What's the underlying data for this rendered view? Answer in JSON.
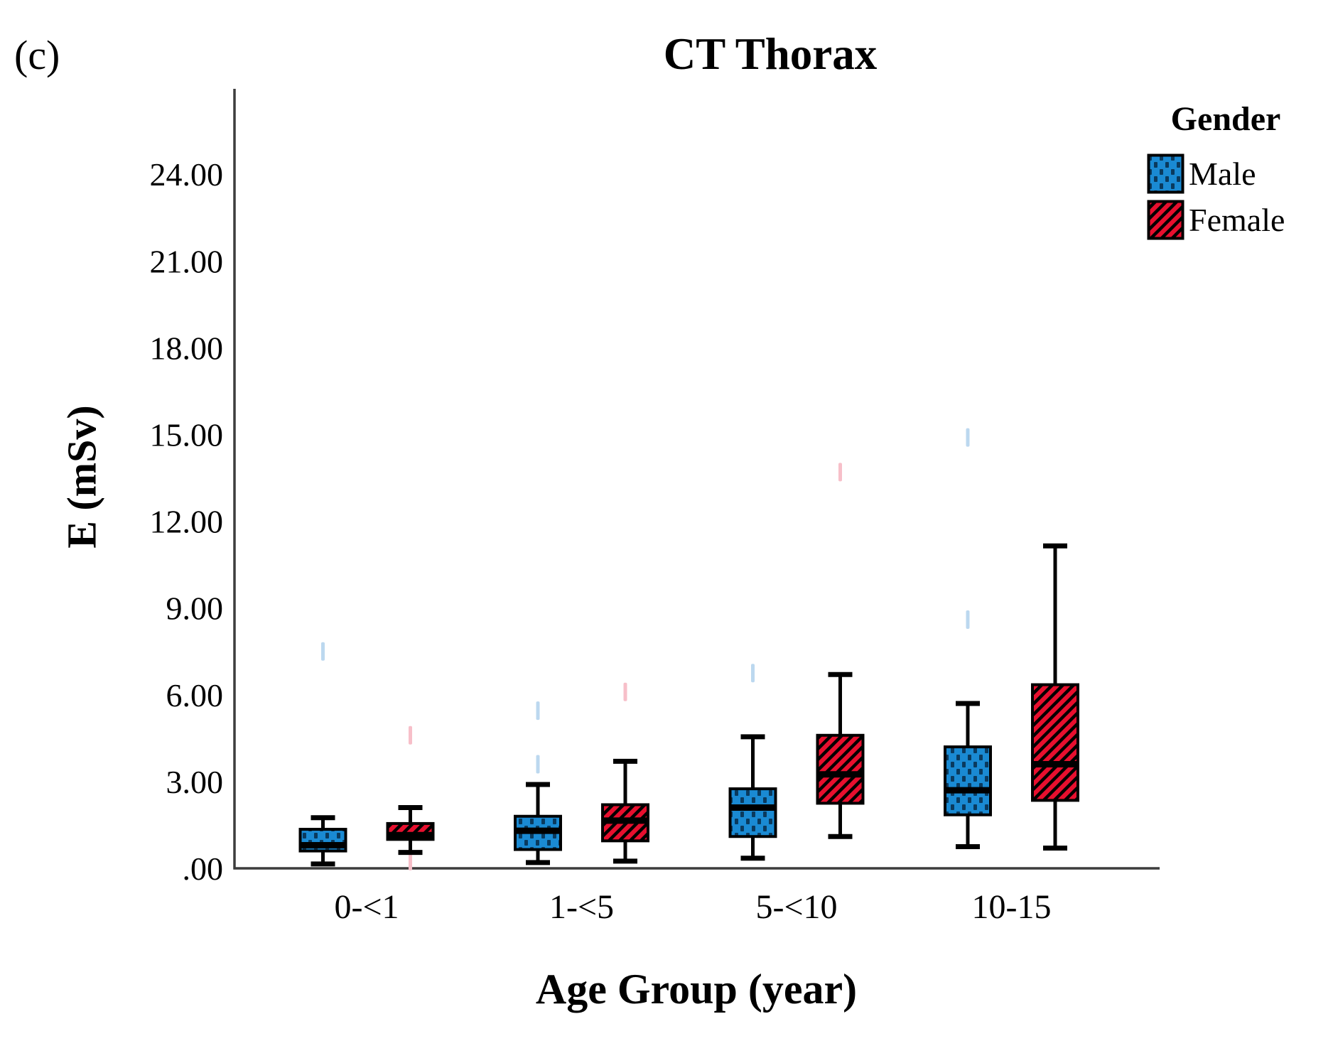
{
  "panel_label": "(c)",
  "title": "CT Thorax",
  "legend": {
    "title": "Gender",
    "entries": [
      {
        "label": "Male",
        "color": "#1a8ad3",
        "pattern": "vertical-dashes"
      },
      {
        "label": "Female",
        "color": "#e70f2e",
        "pattern": "diagonal-hatch"
      }
    ]
  },
  "y_axis": {
    "title": "E (mSv)",
    "ticks": [
      {
        "label": ".00",
        "value": 0
      },
      {
        "label": "3.00",
        "value": 3
      },
      {
        "label": "6.00",
        "value": 6
      },
      {
        "label": "9.00",
        "value": 9
      },
      {
        "label": "12.00",
        "value": 12
      },
      {
        "label": "15.00",
        "value": 15
      },
      {
        "label": "18.00",
        "value": 18
      },
      {
        "label": "21.00",
        "value": 21
      },
      {
        "label": "24.00",
        "value": 24
      }
    ]
  },
  "x_axis": {
    "title": "Age Group (year)",
    "categories": [
      "0-<1",
      "1-<5",
      "5-<10",
      "10-15"
    ]
  },
  "chart_data": {
    "type": "boxplot",
    "title": "CT Thorax",
    "xlabel": "Age Group (year)",
    "ylabel": "E (mSv)",
    "ylim": [
      0,
      27
    ],
    "grid": false,
    "legend_position": "top-right",
    "categories": [
      "0-<1",
      "1-<5",
      "5-<10",
      "10-15"
    ],
    "series": [
      {
        "name": "Male",
        "fill": "#1a8ad3",
        "pattern_color": "#0a3a5e",
        "faint_mark_color": "#bcd8ef",
        "boxes": [
          {
            "whisker_low": 0.15,
            "q1": 0.6,
            "median": 0.8,
            "q3": 1.35,
            "whisker_high": 1.75,
            "faint_marks": [
              7.5
            ]
          },
          {
            "whisker_low": 0.2,
            "q1": 0.65,
            "median": 1.3,
            "q3": 1.8,
            "whisker_high": 2.9,
            "faint_marks": [
              5.45,
              3.6
            ]
          },
          {
            "whisker_low": 0.35,
            "q1": 1.1,
            "median": 2.1,
            "q3": 2.75,
            "whisker_high": 4.55,
            "faint_marks": [
              6.75
            ]
          },
          {
            "whisker_low": 0.75,
            "q1": 1.85,
            "median": 2.7,
            "q3": 4.2,
            "whisker_high": 5.7,
            "faint_marks": [
              14.9,
              8.6
            ]
          }
        ]
      },
      {
        "name": "Female",
        "fill": "#e70f2e",
        "pattern_color": "#000000",
        "faint_mark_color": "#f7bfc9",
        "boxes": [
          {
            "whisker_low": 0.55,
            "q1": 1.0,
            "median": 1.15,
            "q3": 1.55,
            "whisker_high": 2.1,
            "faint_marks": [
              4.6,
              0.25
            ]
          },
          {
            "whisker_low": 0.25,
            "q1": 0.95,
            "median": 1.65,
            "q3": 2.2,
            "whisker_high": 3.7,
            "faint_marks": [
              6.1
            ]
          },
          {
            "whisker_low": 1.1,
            "q1": 2.25,
            "median": 3.25,
            "q3": 4.6,
            "whisker_high": 6.7,
            "faint_marks": [
              13.7
            ]
          },
          {
            "whisker_low": 0.7,
            "q1": 2.35,
            "median": 3.6,
            "q3": 6.35,
            "whisker_high": 11.15,
            "faint_marks": []
          }
        ]
      }
    ]
  }
}
